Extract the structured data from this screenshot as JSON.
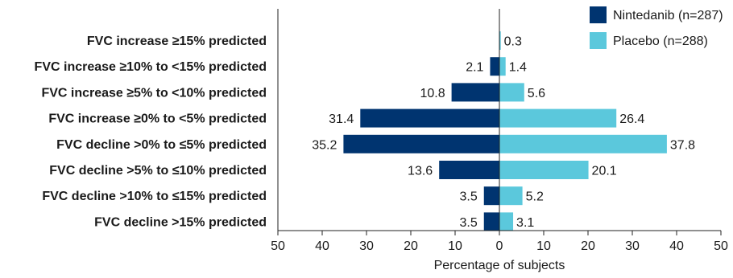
{
  "chart_data": {
    "type": "bar",
    "orientation": "horizontal-diverging",
    "categories": [
      "FVC increase ≥15% predicted",
      "FVC increase ≥10% to <15% predicted",
      "FVC increase ≥5% to <10% predicted",
      "FVC increase ≥0% to <5% predicted",
      "FVC decline >0% to ≤5% predicted",
      "FVC decline >5% to ≤10% predicted",
      "FVC decline >10% to ≤15% predicted",
      "FVC decline >15% predicted"
    ],
    "series": [
      {
        "name": "Nintedanib (n=287)",
        "color": "#003470",
        "side": "left",
        "values": [
          0,
          2.1,
          10.8,
          31.4,
          35.2,
          13.6,
          3.5,
          3.5
        ],
        "labels": [
          "",
          "2.1",
          "10.8",
          "31.4",
          "35.2",
          "13.6",
          "3.5",
          "3.5"
        ]
      },
      {
        "name": "Placebo (n=288)",
        "color": "#5bc8dc",
        "side": "right",
        "values": [
          0.3,
          1.4,
          5.6,
          26.4,
          37.8,
          20.1,
          5.2,
          3.1
        ],
        "labels": [
          "0.3",
          "1.4",
          "5.6",
          "26.4",
          "37.8",
          "20.1",
          "5.2",
          "3.1"
        ]
      }
    ],
    "xlabel": "Percentage of subjects",
    "xlim": [
      -50,
      50
    ],
    "xticks": [
      -50,
      -40,
      -30,
      -20,
      -10,
      0,
      10,
      20,
      30,
      40,
      50
    ],
    "xtick_labels": [
      "50",
      "40",
      "30",
      "20",
      "10",
      "0",
      "10",
      "20",
      "30",
      "40",
      "50"
    ],
    "grid": false,
    "legend_position": "top-right"
  }
}
